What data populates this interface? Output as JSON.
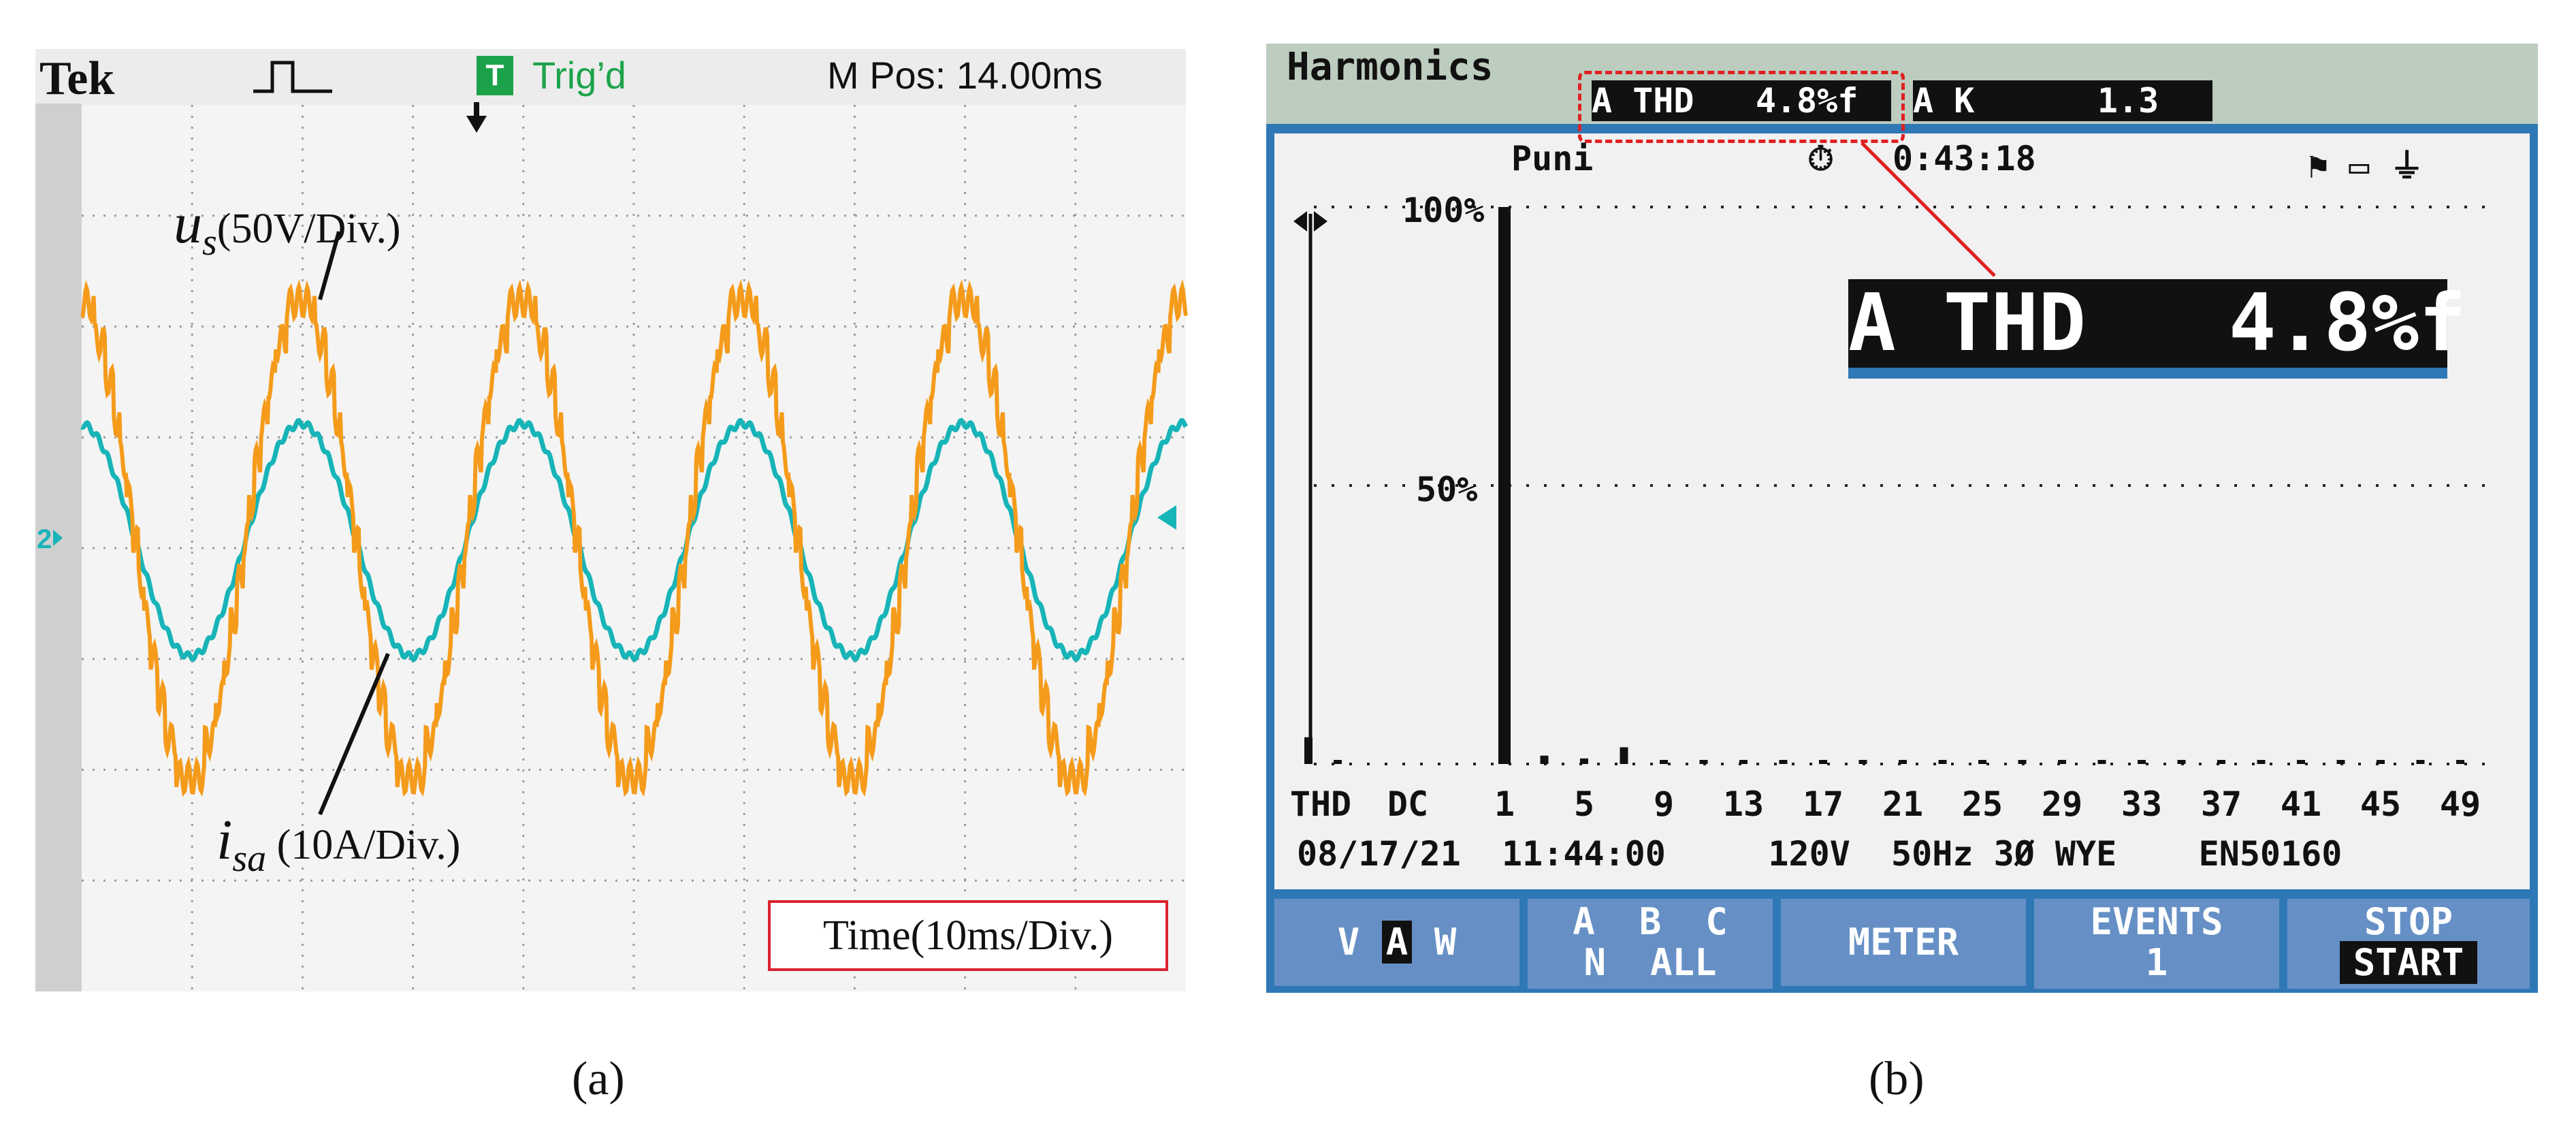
{
  "panel_a": {
    "caption": "(a)",
    "header": {
      "brand": "Tek",
      "trigger_badge": "T",
      "trigger_status": "Trig’d",
      "m_pos": "M Pos: 14.00ms"
    },
    "channel_marker": "2",
    "labels": {
      "us_symbol": "u",
      "us_sub": "s",
      "us_unit": "(50V/Div.)",
      "isa_symbol": "i",
      "isa_sub": "sa",
      "isa_unit": " (10A/Div.)",
      "timebase": "Time(10ms/Div.)"
    },
    "colors": {
      "us": "#f59b1b",
      "isa": "#17b4b8",
      "grid": "#9c9c9c",
      "timebox_border": "#d9232e"
    }
  },
  "panel_b": {
    "caption": "(b)",
    "title": "Harmonics",
    "thd_mini": "A THD   4.8%f",
    "k_mini": "A K      1.3",
    "status": {
      "mode": "Puni",
      "elapsed": "0:43:18"
    },
    "thd_big": "A THD   4.8%f",
    "footer": {
      "date": "08/17/21",
      "time": "11:44:00",
      "voltage": "120V",
      "frequency": "50Hz",
      "config": "3Ø WYE",
      "standard": "EN50160"
    },
    "buttons": [
      {
        "line1": "V",
        "line1_inv": "A",
        "line1_tail": "W"
      },
      {
        "line1": "A  B  C",
        "line2": "N  ALL"
      },
      {
        "line1": "METER"
      },
      {
        "line1": "EVENTS",
        "line2": "1"
      },
      {
        "line1": "STOP",
        "line2": "START"
      }
    ],
    "colors": {
      "bezel": "#2f78b6",
      "button": "#6690c5",
      "screen": "#f1f1f1",
      "title_bar": "#bcccbe",
      "highlight": "#e02020"
    }
  },
  "chart_data": [
    {
      "type": "line",
      "title": "",
      "xlabel": "Time(10ms/Div.)",
      "ylabel": "",
      "x_unit": "div",
      "xlim": [
        0,
        10
      ],
      "ylim": [
        -4,
        4
      ],
      "grid": true,
      "series": [
        {
          "name": "us (50V/Div.)",
          "period_div": 2.0,
          "amplitude_div": 2.15,
          "waveform": "stepped multilevel sine",
          "phase": "in phase with isa"
        },
        {
          "name": "isa (10A/Div.)",
          "period_div": 2.0,
          "amplitude_div": 1.05,
          "waveform": "sine with ripple"
        }
      ]
    },
    {
      "type": "bar",
      "title": "Harmonics",
      "ylabel": "",
      "y_ticks": [
        "50%",
        "100%"
      ],
      "ylim": [
        0,
        100
      ],
      "x_tick_labels": [
        "THD",
        "DC",
        "1",
        "5",
        "9",
        "13",
        "17",
        "21",
        "25",
        "29",
        "33",
        "37",
        "41",
        "45",
        "49"
      ],
      "categories": [
        "THD",
        "DC",
        "1",
        "3",
        "5",
        "7",
        "9",
        "11",
        "13",
        "15",
        "17",
        "19",
        "21",
        "23",
        "25",
        "27",
        "29",
        "31",
        "33",
        "35",
        "37",
        "39",
        "41",
        "43",
        "45",
        "47",
        "49"
      ],
      "values": [
        4.8,
        0,
        100,
        1.5,
        1.0,
        3.0,
        0.6,
        0.3,
        0.3,
        0.2,
        0.3,
        0.2,
        0.3,
        0.2,
        0.2,
        0.2,
        0.4,
        0.2,
        0.3,
        0.2,
        0.3,
        0.2,
        0.2,
        0.2,
        0.2,
        0.2,
        0.2
      ],
      "grid": true
    }
  ]
}
